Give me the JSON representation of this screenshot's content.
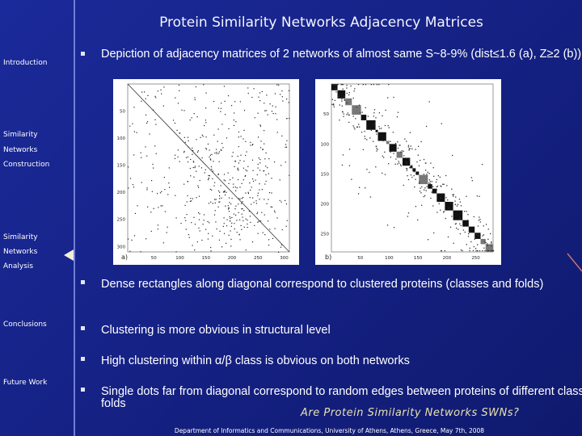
{
  "header": {
    "title": "Protein Similarity Networks Adjacency Matrices"
  },
  "sidebar": {
    "items": [
      "Introduction",
      "Similarity",
      "Networks",
      "Construction",
      "Similarity",
      "Networks",
      "Analysis",
      "Conclusions",
      "Future Work"
    ]
  },
  "bullets": {
    "intro": "Depiction of adjacency matrices of 2 networks of almost same S~8-9% (dist≤1.6 (a), Z≥2 (b))",
    "main": "Dense rectangles along diagonal correspond to clustered proteins (classes and folds)",
    "sub": [
      "Clustering is more obvious in structural level",
      "High clustering within α/β class is obvious on both networks",
      "Single dots far from diagonal correspond to random edges between proteins of different classes or folds"
    ]
  },
  "figures": [
    {
      "label": "a)",
      "yticks": [
        "50",
        "100",
        "150",
        "200",
        "250",
        "300"
      ],
      "xticks": [
        "50",
        "100",
        "150",
        "200",
        "250",
        "300"
      ]
    },
    {
      "label": "b)",
      "yticks": [
        "50",
        "100",
        "150",
        "200",
        "250"
      ],
      "xticks": [
        "50",
        "100",
        "150",
        "200",
        "250"
      ]
    }
  ],
  "question": "Are Protein Similarity Networks SWNs?",
  "footer": "Department of Informatics and Communications, University of Athens, Athens, Greece, May 7th, 2008"
}
